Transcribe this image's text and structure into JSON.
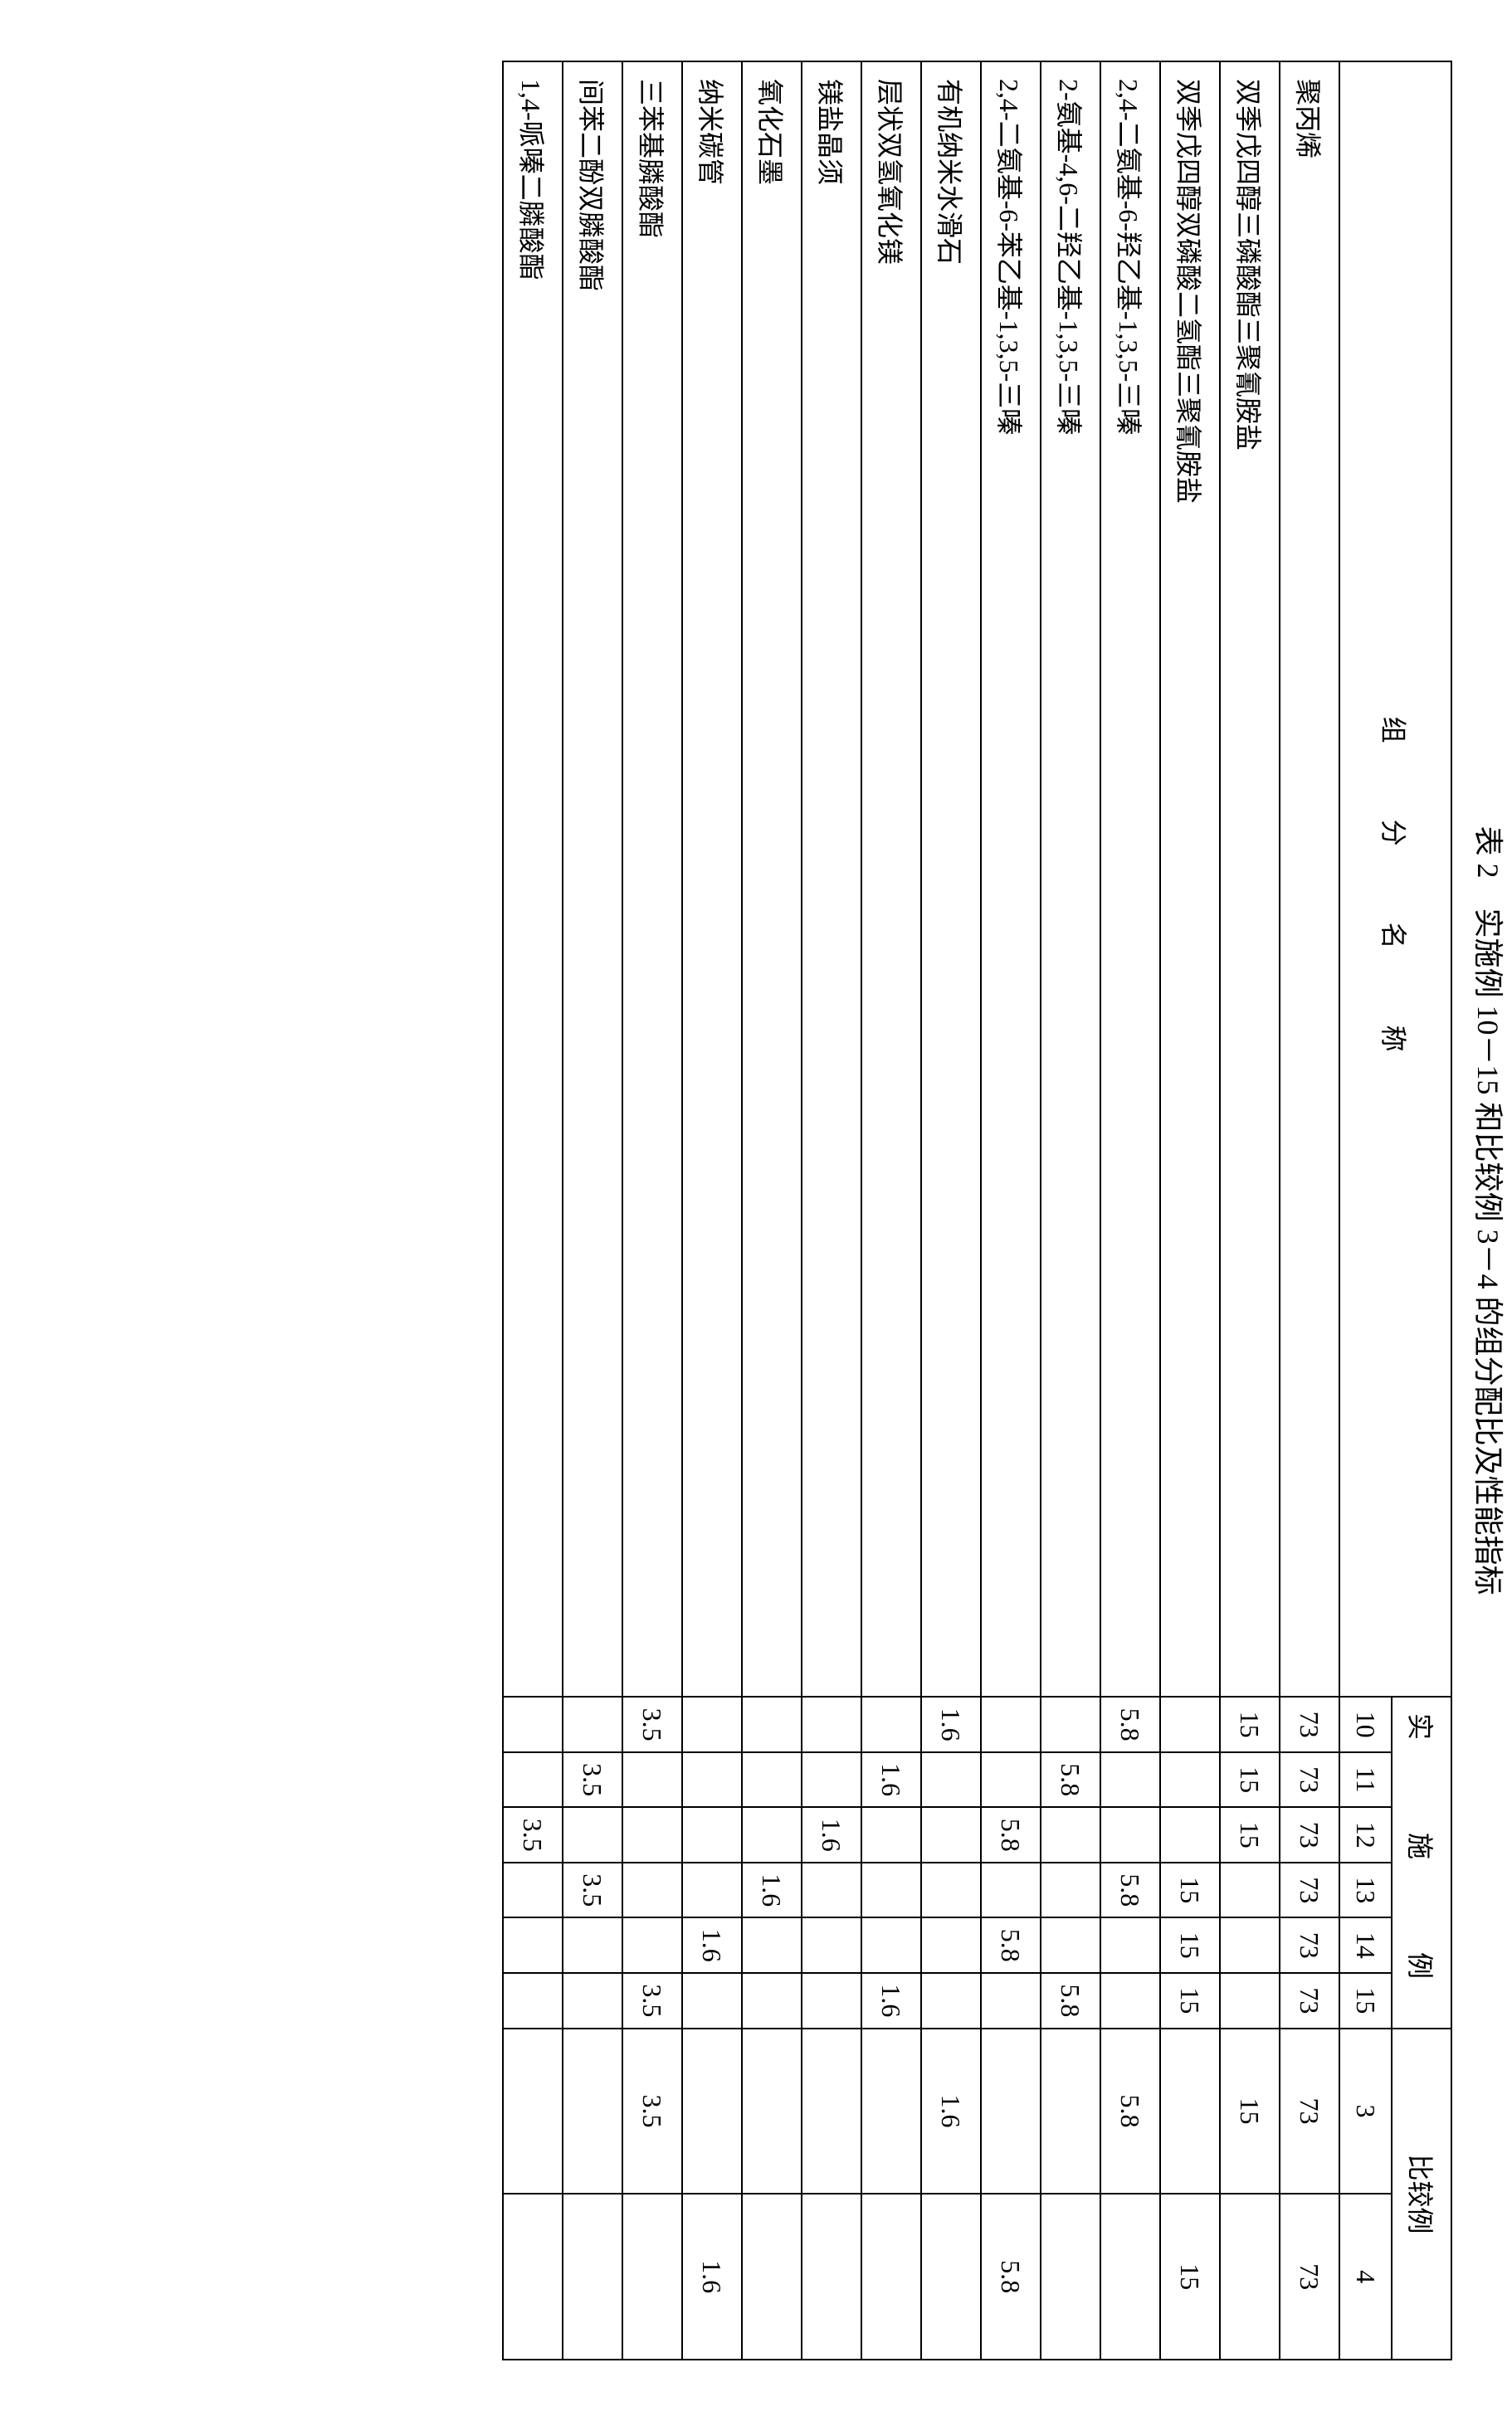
{
  "title": "表 2　实施例 10－15 和比较例 3－4 的组分配比及性能指标",
  "headers": {
    "component_name": "组　分　名　称",
    "example_group": "实　施　例",
    "comparison_group": "比较例",
    "example_nums": [
      "10",
      "11",
      "12",
      "13",
      "14",
      "15"
    ],
    "comparison_nums": [
      "3",
      "4"
    ]
  },
  "rows": [
    {
      "name": "聚丙烯",
      "vals": [
        "73",
        "73",
        "73",
        "73",
        "73",
        "73",
        "73",
        "73"
      ]
    },
    {
      "name": "双季戊四醇三磷酸酯三聚氰胺盐",
      "vals": [
        "15",
        "15",
        "15",
        "",
        "",
        "",
        "15",
        ""
      ]
    },
    {
      "name": "双季戊四醇双磷酸二氢酯三聚氰胺盐",
      "vals": [
        "",
        "",
        "",
        "15",
        "15",
        "15",
        "",
        "15"
      ]
    },
    {
      "name": "2,4-二氨基-6-羟乙基-1,3,5-三嗪",
      "vals": [
        "5.8",
        "",
        "",
        "5.8",
        "",
        "",
        "5.8",
        ""
      ]
    },
    {
      "name": "2-氨基-4,6-二羟乙基-1,3,5-三嗪",
      "vals": [
        "",
        "5.8",
        "",
        "",
        "",
        "5.8",
        "",
        ""
      ]
    },
    {
      "name": "2,4-二氨基-6-苯乙基-1,3,5-三嗪",
      "vals": [
        "",
        "",
        "5.8",
        "",
        "5.8",
        "",
        "",
        "5.8"
      ]
    },
    {
      "name": "有机纳米水滑石",
      "vals": [
        "1.6",
        "",
        "",
        "",
        "",
        "",
        "1.6",
        ""
      ]
    },
    {
      "name": "层状双氢氧化镁",
      "vals": [
        "",
        "1.6",
        "",
        "",
        "",
        "1.6",
        "",
        ""
      ]
    },
    {
      "name": "镁盐晶须",
      "vals": [
        "",
        "",
        "1.6",
        "",
        "",
        "",
        "",
        ""
      ]
    },
    {
      "name": "氧化石墨",
      "vals": [
        "",
        "",
        "",
        "1.6",
        "",
        "",
        "",
        ""
      ]
    },
    {
      "name": "纳米碳管",
      "vals": [
        "",
        "",
        "",
        "",
        "1.6",
        "",
        "",
        "1.6"
      ]
    },
    {
      "name": "三苯基膦酸酯",
      "vals": [
        "3.5",
        "",
        "",
        "",
        "",
        "3.5",
        "3.5",
        ""
      ]
    },
    {
      "name": "间苯二酚双膦酸酯",
      "vals": [
        "",
        "3.5",
        "",
        "3.5",
        "",
        "",
        "",
        ""
      ]
    },
    {
      "name": "1,4-哌嗪二膦酸酯",
      "vals": [
        "",
        "",
        "3.5",
        "",
        "",
        "",
        "",
        ""
      ]
    }
  ],
  "style": {
    "background_color": "#ffffff",
    "text_color": "#000000",
    "border_color": "#000000",
    "title_fontsize": 36,
    "cell_fontsize": 32
  }
}
